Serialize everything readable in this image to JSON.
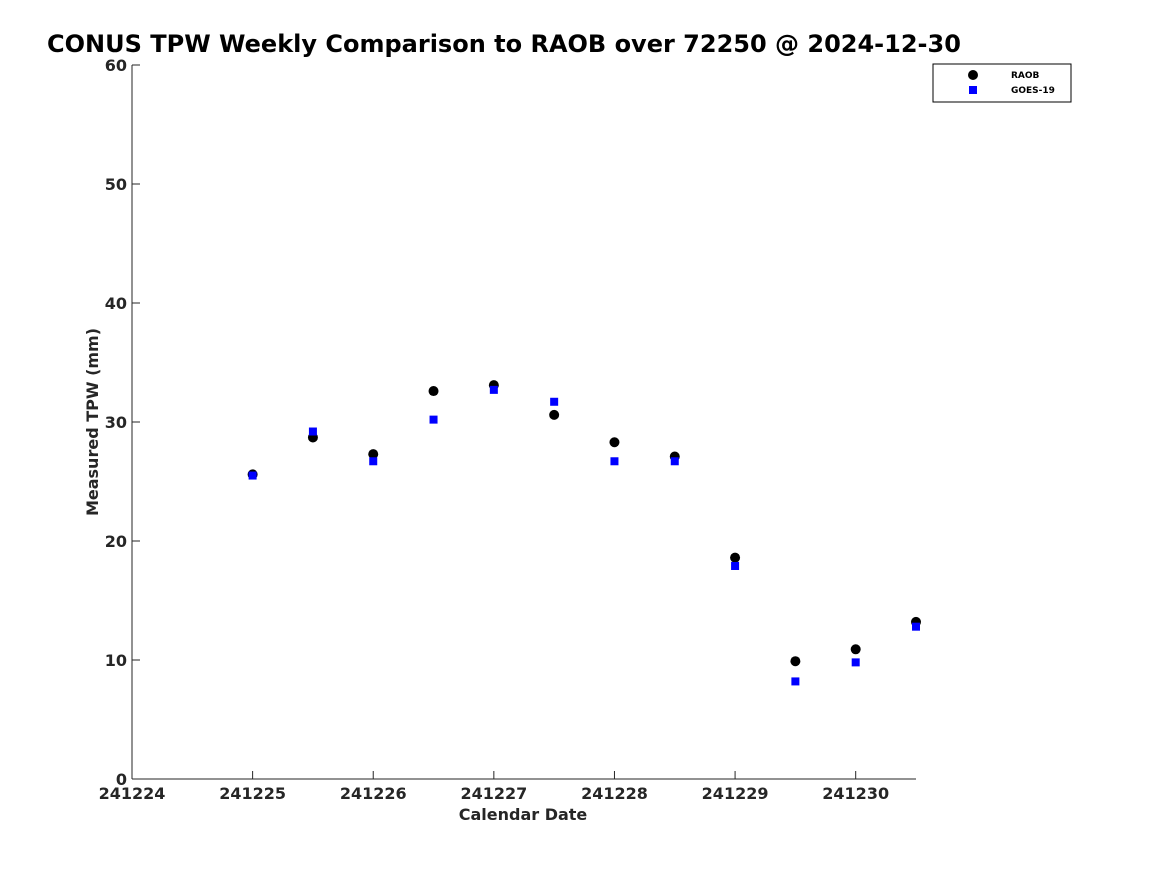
{
  "chart_data": {
    "type": "scatter",
    "title": "CONUS TPW Weekly Comparison to RAOB over 72250 @ 2024-12-30",
    "xlabel": "Calendar Date",
    "ylabel": "Measured TPW (mm)",
    "xlim": [
      241224,
      241230.5
    ],
    "ylim": [
      0,
      60
    ],
    "xticks": [
      241224,
      241225,
      241226,
      241227,
      241228,
      241229,
      241230
    ],
    "xtick_labels": [
      "241224",
      "241225",
      "241226",
      "241227",
      "241228",
      "241229",
      "241230"
    ],
    "yticks": [
      0,
      10,
      20,
      30,
      40,
      50,
      60
    ],
    "ytick_labels": [
      "0",
      "10",
      "20",
      "30",
      "40",
      "50",
      "60"
    ],
    "grid": false,
    "legend_position": "top-right",
    "series": [
      {
        "name": "RAOB",
        "marker": "circle",
        "color": "#000000",
        "x": [
          241225,
          241225.5,
          241226,
          241226.5,
          241227,
          241227.5,
          241228,
          241228.5,
          241229,
          241229.5,
          241230,
          241230.5
        ],
        "values": [
          25.6,
          28.7,
          27.3,
          32.6,
          33.1,
          30.6,
          28.3,
          27.1,
          18.6,
          9.9,
          10.9,
          13.2
        ]
      },
      {
        "name": "GOES-19",
        "marker": "square",
        "color": "#0000ff",
        "x": [
          241225,
          241225.5,
          241226,
          241226.5,
          241227,
          241227.5,
          241228,
          241228.5,
          241229,
          241229.5,
          241230,
          241230.5
        ],
        "values": [
          25.5,
          29.2,
          26.7,
          30.2,
          32.7,
          31.7,
          26.7,
          26.7,
          17.9,
          8.2,
          9.8,
          12.8
        ]
      }
    ]
  }
}
